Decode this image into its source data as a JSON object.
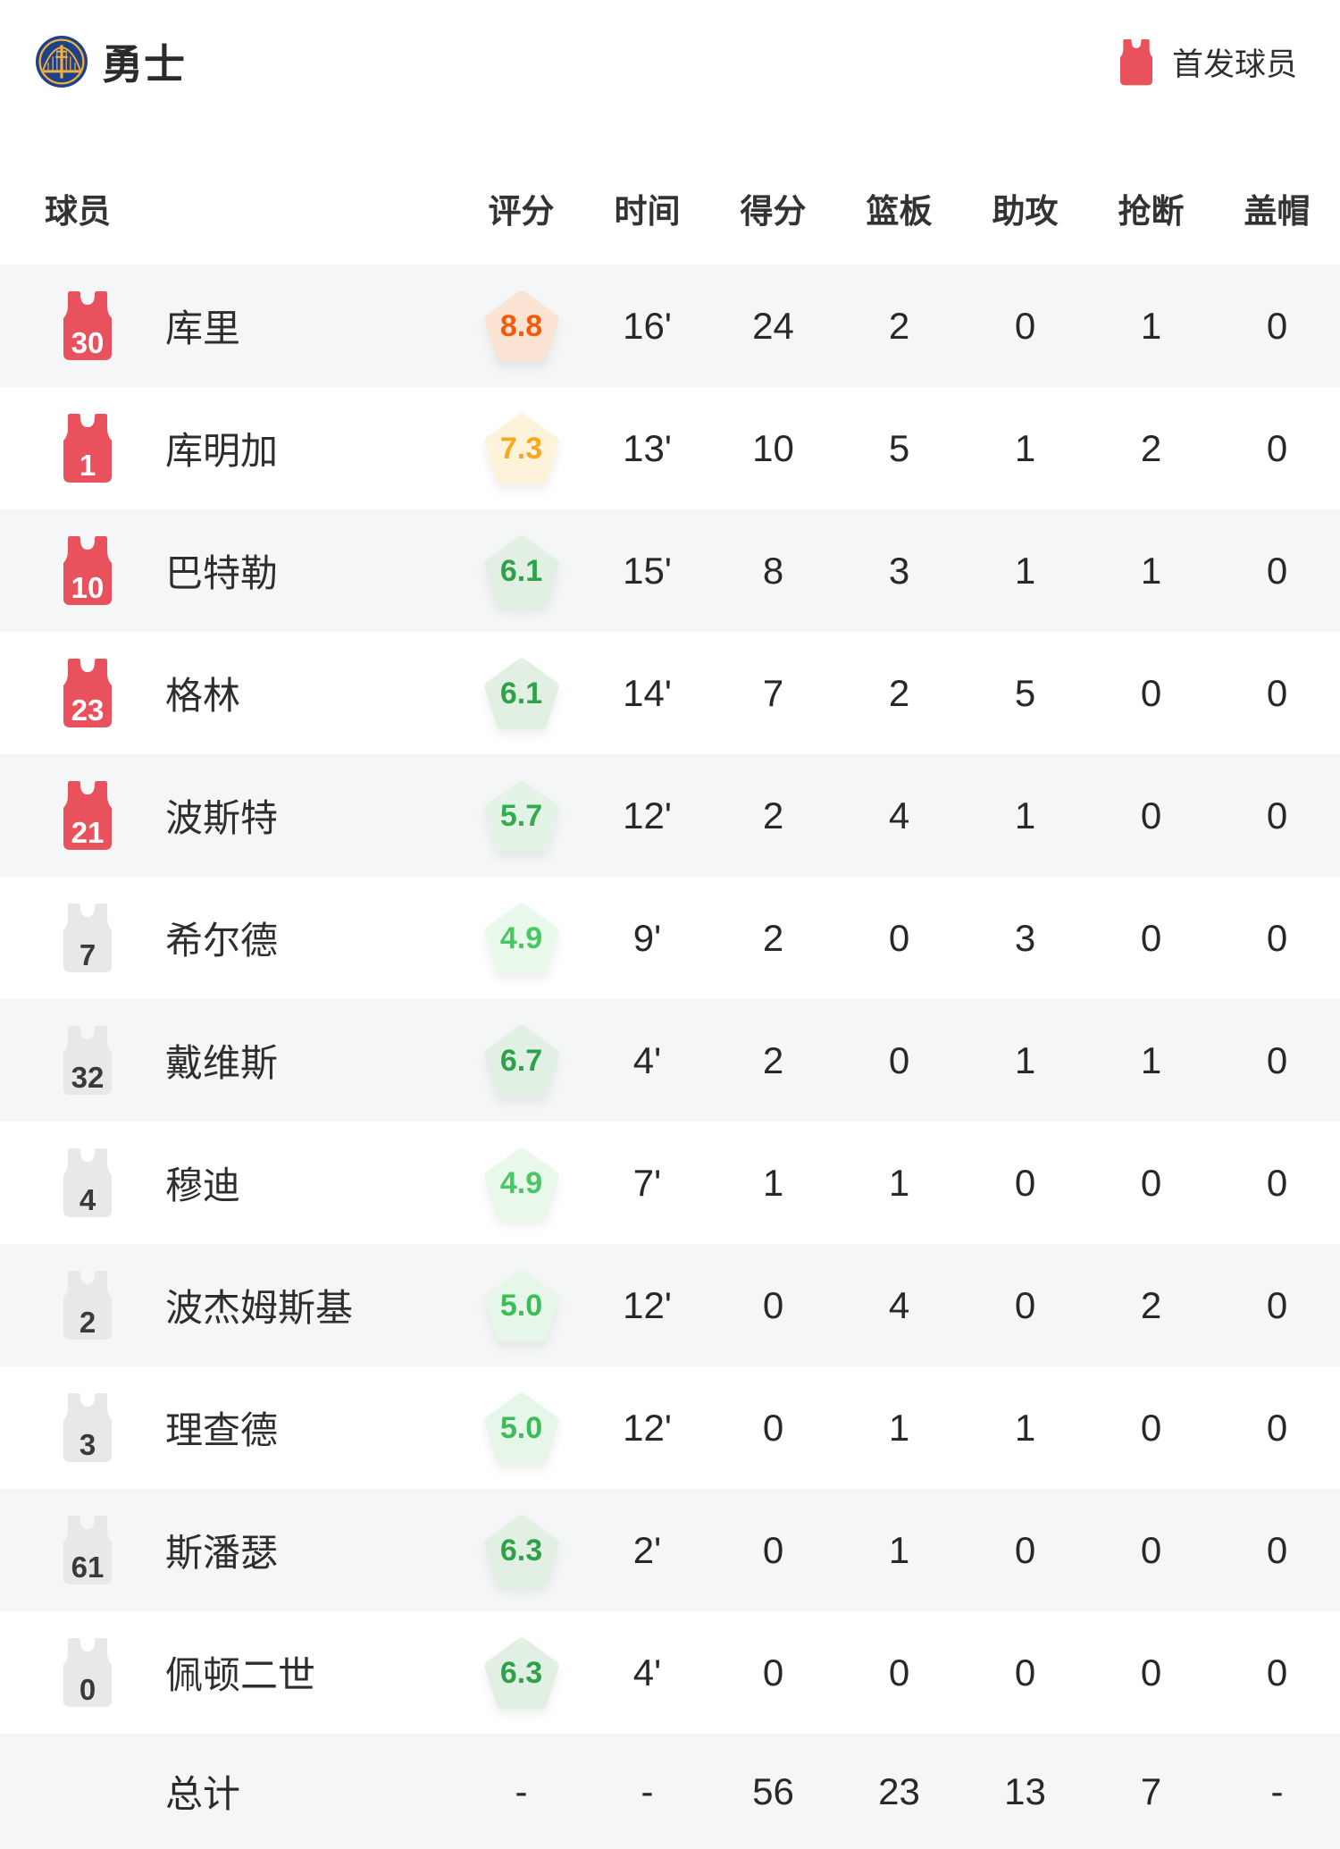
{
  "header": {
    "team_name": "勇士",
    "legend_label": "首发球员"
  },
  "columns": [
    "球员",
    "评分",
    "时间",
    "得分",
    "篮板",
    "助攻",
    "抢断",
    "盖帽"
  ],
  "players": [
    {
      "number": "30",
      "name": "库里",
      "starter": true,
      "rating": "8.8",
      "rating_fg": "#F25B0C",
      "rating_bg": "#FAE3D2",
      "stats": [
        "16'",
        "24",
        "2",
        "0",
        "1",
        "0"
      ]
    },
    {
      "number": "1",
      "name": "库明加",
      "starter": true,
      "rating": "7.3",
      "rating_fg": "#F7A81B",
      "rating_bg": "#FCF3DA",
      "stats": [
        "13'",
        "10",
        "5",
        "1",
        "2",
        "0"
      ]
    },
    {
      "number": "10",
      "name": "巴特勒",
      "starter": true,
      "rating": "6.1",
      "rating_fg": "#2EA24A",
      "rating_bg": "#E2F0E4",
      "stats": [
        "15'",
        "8",
        "3",
        "1",
        "1",
        "0"
      ]
    },
    {
      "number": "23",
      "name": "格林",
      "starter": true,
      "rating": "6.1",
      "rating_fg": "#2EA24A",
      "rating_bg": "#E2F0E4",
      "stats": [
        "14'",
        "7",
        "2",
        "5",
        "0",
        "0"
      ]
    },
    {
      "number": "21",
      "name": "波斯特",
      "starter": true,
      "rating": "5.7",
      "rating_fg": "#31AC4F",
      "rating_bg": "#E3F3E5",
      "stats": [
        "12'",
        "2",
        "4",
        "1",
        "0",
        "0"
      ]
    },
    {
      "number": "7",
      "name": "希尔德",
      "starter": false,
      "rating": "4.9",
      "rating_fg": "#49C763",
      "rating_bg": "#E8F8EA",
      "stats": [
        "9'",
        "2",
        "0",
        "3",
        "0",
        "0"
      ]
    },
    {
      "number": "32",
      "name": "戴维斯",
      "starter": false,
      "rating": "6.7",
      "rating_fg": "#2EA24A",
      "rating_bg": "#E2F0E4",
      "stats": [
        "4'",
        "2",
        "0",
        "1",
        "1",
        "0"
      ]
    },
    {
      "number": "4",
      "name": "穆迪",
      "starter": false,
      "rating": "4.9",
      "rating_fg": "#49C763",
      "rating_bg": "#E8F8EA",
      "stats": [
        "7'",
        "1",
        "1",
        "0",
        "0",
        "0"
      ]
    },
    {
      "number": "2",
      "name": "波杰姆斯基",
      "starter": false,
      "rating": "5.0",
      "rating_fg": "#3CBD58",
      "rating_bg": "#E6F6E8",
      "stats": [
        "12'",
        "0",
        "4",
        "0",
        "2",
        "0"
      ]
    },
    {
      "number": "3",
      "name": "理查德",
      "starter": false,
      "rating": "5.0",
      "rating_fg": "#3CBD58",
      "rating_bg": "#E6F6E8",
      "stats": [
        "12'",
        "0",
        "1",
        "1",
        "0",
        "0"
      ]
    },
    {
      "number": "61",
      "name": "斯潘瑟",
      "starter": false,
      "rating": "6.3",
      "rating_fg": "#2EA24A",
      "rating_bg": "#E2F0E4",
      "stats": [
        "2'",
        "0",
        "1",
        "0",
        "0",
        "0"
      ]
    },
    {
      "number": "0",
      "name": "佩顿二世",
      "starter": false,
      "rating": "6.3",
      "rating_fg": "#2EA24A",
      "rating_bg": "#E2F0E4",
      "stats": [
        "4'",
        "0",
        "0",
        "0",
        "0",
        "0"
      ]
    }
  ],
  "total": {
    "label": "总计",
    "rating": "-",
    "time": "-",
    "pts": "56",
    "reb": "23",
    "ast": "13",
    "stl": "7",
    "blk": "-"
  },
  "colors": {
    "starter_jersey": "#E9515C",
    "starter_jersey_number": "#FFFFFF",
    "bench_jersey": "#E8E8EA",
    "bench_jersey_number": "#3A3A3C",
    "row_alt_bg": "#F5F6F8",
    "logo_blue": "#1D428A",
    "logo_gold": "#F3AE3D"
  },
  "icons": {
    "logo": "warriors-logo-icon",
    "starter": "starter-jersey-icon",
    "rating": "rating-pentagon-badge"
  }
}
